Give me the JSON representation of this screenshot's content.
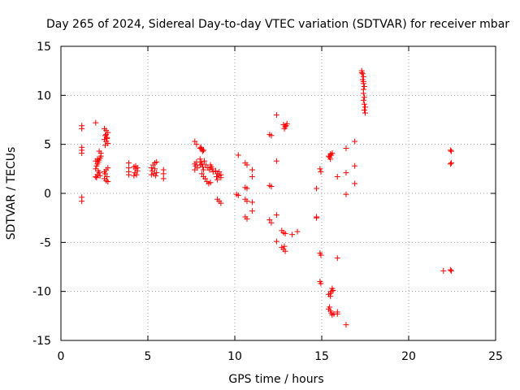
{
  "chart_data": {
    "type": "scatter",
    "title": "Day 265 of 2024, Sidereal Day-to-day VTEC variation (SDTVAR) for receiver mbar",
    "xlabel": "GPS time / hours",
    "ylabel": "SDTVAR / TECUs",
    "xlim": [
      0,
      25
    ],
    "ylim": [
      -15,
      15
    ],
    "xticks": [
      0,
      5,
      10,
      15,
      20,
      25
    ],
    "yticks": [
      -15,
      -10,
      -5,
      0,
      5,
      10,
      15
    ],
    "xtick_labels": [
      "0",
      "5",
      "10",
      "15",
      "20",
      "25"
    ],
    "ytick_labels": [
      "-15",
      "-10",
      "-5",
      "0",
      "5",
      "10",
      "15"
    ],
    "grid": true,
    "marker": "plus",
    "color": "#ff0000",
    "series": [
      {
        "name": "SDTVAR",
        "points": [
          [
            1.2,
            6.9
          ],
          [
            1.2,
            6.6
          ],
          [
            1.2,
            4.7
          ],
          [
            1.2,
            4.4
          ],
          [
            1.2,
            4.1
          ],
          [
            1.2,
            -0.4
          ],
          [
            1.2,
            -0.8
          ],
          [
            2.0,
            7.2
          ],
          [
            2.0,
            1.7
          ],
          [
            2.1,
            1.9
          ],
          [
            2.2,
            2.1
          ],
          [
            2.0,
            2.5
          ],
          [
            2.05,
            2.8
          ],
          [
            2.1,
            3.0
          ],
          [
            2.15,
            3.2
          ],
          [
            2.2,
            3.4
          ],
          [
            2.25,
            3.6
          ],
          [
            2.3,
            3.8
          ],
          [
            2.3,
            4.1
          ],
          [
            2.2,
            4.3
          ],
          [
            2.1,
            3.5
          ],
          [
            2.0,
            3.3
          ],
          [
            2.15,
            2.3
          ],
          [
            2.25,
            1.8
          ],
          [
            2.05,
            1.6
          ],
          [
            2.5,
            6.6
          ],
          [
            2.6,
            6.4
          ],
          [
            2.7,
            6.2
          ],
          [
            2.55,
            5.9
          ],
          [
            2.65,
            5.7
          ],
          [
            2.5,
            5.5
          ],
          [
            2.6,
            5.3
          ],
          [
            2.7,
            5.1
          ],
          [
            2.55,
            4.9
          ],
          [
            2.65,
            5.6
          ],
          [
            2.6,
            6.0
          ],
          [
            2.5,
            2.2
          ],
          [
            2.6,
            2.4
          ],
          [
            2.7,
            2.6
          ],
          [
            2.55,
            2.0
          ],
          [
            2.5,
            1.5
          ],
          [
            2.6,
            1.3
          ],
          [
            2.7,
            1.2
          ],
          [
            2.65,
            1.7
          ],
          [
            3.9,
            3.1
          ],
          [
            3.9,
            2.6
          ],
          [
            3.9,
            2.2
          ],
          [
            3.9,
            1.9
          ],
          [
            4.2,
            2.7
          ],
          [
            4.3,
            2.5
          ],
          [
            4.4,
            2.3
          ],
          [
            4.25,
            2.1
          ],
          [
            4.35,
            1.9
          ],
          [
            4.2,
            1.8
          ],
          [
            4.4,
            2.6
          ],
          [
            4.3,
            2.8
          ],
          [
            5.2,
            2.6
          ],
          [
            5.3,
            2.9
          ],
          [
            5.4,
            3.1
          ],
          [
            5.5,
            3.2
          ],
          [
            5.25,
            2.3
          ],
          [
            5.35,
            2.0
          ],
          [
            5.45,
            1.8
          ],
          [
            5.5,
            2.1
          ],
          [
            5.2,
            1.9
          ],
          [
            5.4,
            2.5
          ],
          [
            5.9,
            2.4
          ],
          [
            5.9,
            2.0
          ],
          [
            5.9,
            1.5
          ],
          [
            7.7,
            5.3
          ],
          [
            7.8,
            5.0
          ],
          [
            7.7,
            3.0
          ],
          [
            7.75,
            2.8
          ],
          [
            7.85,
            2.6
          ],
          [
            7.7,
            2.4
          ],
          [
            7.8,
            3.2
          ],
          [
            8.0,
            4.6
          ],
          [
            8.1,
            4.5
          ],
          [
            8.2,
            4.4
          ],
          [
            8.05,
            4.7
          ],
          [
            8.15,
            4.3
          ],
          [
            8.0,
            3.5
          ],
          [
            8.05,
            3.2
          ],
          [
            8.1,
            3.0
          ],
          [
            8.15,
            2.7
          ],
          [
            8.2,
            2.4
          ],
          [
            8.1,
            2.0
          ],
          [
            8.2,
            1.7
          ],
          [
            8.3,
            1.5
          ],
          [
            8.4,
            1.2
          ],
          [
            8.5,
            1.0
          ],
          [
            8.6,
            1.1
          ],
          [
            8.35,
            2.9
          ],
          [
            8.45,
            2.6
          ],
          [
            8.55,
            2.4
          ],
          [
            8.65,
            2.7
          ],
          [
            8.7,
            2.5
          ],
          [
            8.75,
            2.2
          ],
          [
            8.6,
            2.9
          ],
          [
            8.25,
            3.3
          ],
          [
            8.0,
            2.9
          ],
          [
            8.9,
            2.3
          ],
          [
            9.0,
            2.0
          ],
          [
            9.1,
            1.8
          ],
          [
            9.2,
            1.6
          ],
          [
            9.0,
            1.4
          ],
          [
            9.1,
            2.2
          ],
          [
            9.2,
            1.9
          ],
          [
            8.95,
            1.7
          ],
          [
            9.0,
            -0.6
          ],
          [
            9.1,
            -0.8
          ],
          [
            9.2,
            -1.0
          ],
          [
            10.2,
            3.9
          ],
          [
            10.1,
            -0.1
          ],
          [
            10.2,
            -0.2
          ],
          [
            10.6,
            3.1
          ],
          [
            10.7,
            2.9
          ],
          [
            10.6,
            0.6
          ],
          [
            10.7,
            0.5
          ],
          [
            10.6,
            -0.6
          ],
          [
            10.7,
            -0.8
          ],
          [
            10.6,
            -2.4
          ],
          [
            10.7,
            -2.6
          ],
          [
            11.0,
            2.4
          ],
          [
            11.0,
            1.7
          ],
          [
            11.0,
            -0.9
          ],
          [
            11.0,
            -1.8
          ],
          [
            12.0,
            6.0
          ],
          [
            12.1,
            5.9
          ],
          [
            12.0,
            0.8
          ],
          [
            12.1,
            0.7
          ],
          [
            12.0,
            -2.7
          ],
          [
            12.1,
            -3.0
          ],
          [
            12.4,
            8.0
          ],
          [
            12.4,
            3.3
          ],
          [
            12.4,
            -2.2
          ],
          [
            12.4,
            -4.9
          ],
          [
            12.8,
            7.0
          ],
          [
            12.9,
            6.8
          ],
          [
            13.0,
            7.1
          ],
          [
            12.85,
            6.6
          ],
          [
            12.95,
            6.9
          ],
          [
            12.7,
            -3.8
          ],
          [
            12.8,
            -4.0
          ],
          [
            12.9,
            -4.1
          ],
          [
            12.7,
            -5.5
          ],
          [
            12.8,
            -5.7
          ],
          [
            12.9,
            -5.9
          ],
          [
            12.85,
            -5.4
          ],
          [
            13.3,
            -4.2
          ],
          [
            13.6,
            -3.9
          ],
          [
            14.7,
            0.5
          ],
          [
            14.7,
            -2.4
          ],
          [
            14.7,
            -2.5
          ],
          [
            14.9,
            2.5
          ],
          [
            14.95,
            2.2
          ],
          [
            14.9,
            -6.1
          ],
          [
            14.95,
            -6.3
          ],
          [
            14.9,
            -9.0
          ],
          [
            14.95,
            -9.2
          ],
          [
            15.4,
            3.8
          ],
          [
            15.5,
            4.0
          ],
          [
            15.6,
            4.1
          ],
          [
            15.45,
            3.7
          ],
          [
            15.55,
            3.9
          ],
          [
            15.5,
            3.5
          ],
          [
            15.4,
            -10.3
          ],
          [
            15.5,
            -10.5
          ],
          [
            15.55,
            -10.0
          ],
          [
            15.6,
            -9.7
          ],
          [
            15.65,
            -9.9
          ],
          [
            15.5,
            -10.2
          ],
          [
            15.4,
            -11.8
          ],
          [
            15.5,
            -12.0
          ],
          [
            15.55,
            -12.2
          ],
          [
            15.6,
            -12.4
          ],
          [
            15.7,
            -12.3
          ],
          [
            15.45,
            -11.6
          ],
          [
            15.9,
            -12.3
          ],
          [
            15.9,
            -12.1
          ],
          [
            15.9,
            1.7
          ],
          [
            15.9,
            -6.6
          ],
          [
            16.4,
            4.6
          ],
          [
            16.4,
            2.1
          ],
          [
            16.4,
            -0.1
          ],
          [
            16.4,
            -13.4
          ],
          [
            16.9,
            5.3
          ],
          [
            16.9,
            2.8
          ],
          [
            16.9,
            1.0
          ],
          [
            17.3,
            12.5
          ],
          [
            17.35,
            12.2
          ],
          [
            17.4,
            11.9
          ],
          [
            17.35,
            11.6
          ],
          [
            17.4,
            11.2
          ],
          [
            17.45,
            10.9
          ],
          [
            17.4,
            10.6
          ],
          [
            17.4,
            10.2
          ],
          [
            17.45,
            9.8
          ],
          [
            17.4,
            9.5
          ],
          [
            17.45,
            9.1
          ],
          [
            17.5,
            8.8
          ],
          [
            17.45,
            8.5
          ],
          [
            17.5,
            8.2
          ],
          [
            17.3,
            12.3
          ],
          [
            17.4,
            11.4
          ],
          [
            22.0,
            -7.9
          ],
          [
            22.4,
            4.4
          ],
          [
            22.45,
            4.3
          ],
          [
            22.4,
            3.0
          ],
          [
            22.45,
            3.1
          ],
          [
            22.4,
            -7.8
          ],
          [
            22.45,
            -7.9
          ]
        ]
      }
    ]
  }
}
